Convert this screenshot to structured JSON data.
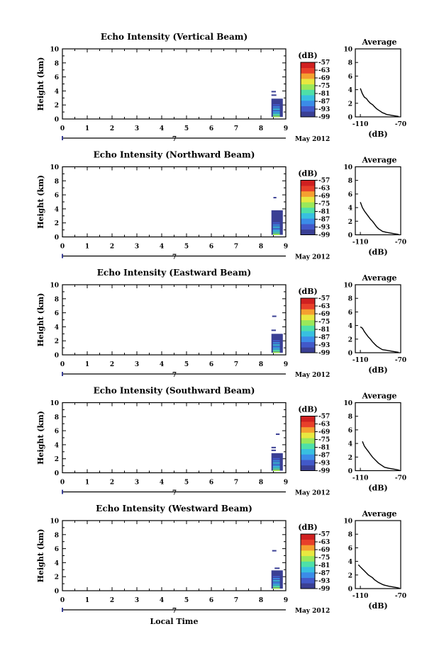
{
  "chart_data": [
    {
      "type": "heatmap",
      "title": "Echo Intensity (Vertical Beam)",
      "ylabel": "Height (km)",
      "xlim": [
        0,
        9
      ],
      "ylim": [
        0,
        10
      ],
      "xticks": [
        "0",
        "1",
        "2",
        "3",
        "4",
        "5",
        "6",
        "7",
        "8",
        "9"
      ],
      "yticks": [
        "0",
        "2",
        "4",
        "6",
        "8",
        "10"
      ],
      "date_label": "May 2012",
      "day_label": "7",
      "colorbar": {
        "label": "(dB)",
        "ticks": [
          "-57",
          "-63",
          "-69",
          "-75",
          "-81",
          "-87",
          "-93",
          "-99"
        ],
        "range": [
          -99,
          -57
        ]
      },
      "echo_block": {
        "x": [
          8.42,
          8.88
        ],
        "y": [
          0.3,
          2.9
        ],
        "dominant_db": -96
      },
      "echo_streaks": [
        {
          "x": [
            8.42,
            8.6
          ],
          "y": 3.9
        },
        {
          "x": [
            8.42,
            8.62
          ],
          "y": 3.4
        }
      ],
      "average_profile": {
        "title": "Average",
        "xlabel": "(dB)",
        "xlim": [
          -115,
          -70
        ],
        "ylim": [
          0,
          10
        ],
        "xticks": [
          "-110",
          "-70"
        ],
        "yticks": [
          "0",
          "2",
          "4",
          "6",
          "8",
          "10"
        ],
        "points": [
          [
            -110,
            4.2
          ],
          [
            -108,
            3.4
          ],
          [
            -106,
            2.9
          ],
          [
            -104,
            2.7
          ],
          [
            -102,
            2.3
          ],
          [
            -100,
            2.0
          ],
          [
            -98,
            1.8
          ],
          [
            -96,
            1.5
          ],
          [
            -94,
            1.2
          ],
          [
            -92,
            1.0
          ],
          [
            -90,
            0.8
          ],
          [
            -88,
            0.6
          ],
          [
            -86,
            0.5
          ],
          [
            -84,
            0.35
          ],
          [
            -80,
            0.25
          ],
          [
            -76,
            0.15
          ],
          [
            -72,
            0.05
          ]
        ]
      }
    },
    {
      "type": "heatmap",
      "title": "Echo Intensity (Northward Beam)",
      "ylabel": "Height (km)",
      "xlim": [
        0,
        9
      ],
      "ylim": [
        0,
        10
      ],
      "xticks": [
        "0",
        "1",
        "2",
        "3",
        "4",
        "5",
        "6",
        "7",
        "8",
        "9"
      ],
      "yticks": [
        "0",
        "2",
        "4",
        "6",
        "8",
        "10"
      ],
      "date_label": "May 2012",
      "day_label": "7",
      "colorbar": {
        "label": "(dB)",
        "ticks": [
          "-57",
          "-63",
          "-69",
          "-75",
          "-81",
          "-87",
          "-93",
          "-99"
        ],
        "range": [
          -99,
          -57
        ]
      },
      "echo_block": {
        "x": [
          8.42,
          8.88
        ],
        "y": [
          0.3,
          3.8
        ],
        "dominant_db": -96
      },
      "echo_streaks": [
        {
          "x": [
            8.5,
            8.62
          ],
          "y": 5.6
        }
      ],
      "average_profile": {
        "title": "Average",
        "xlabel": "(dB)",
        "xlim": [
          -115,
          -70
        ],
        "ylim": [
          0,
          10
        ],
        "xticks": [
          "-110",
          "-70"
        ],
        "yticks": [
          "0",
          "2",
          "4",
          "6",
          "8",
          "10"
        ],
        "points": [
          [
            -110,
            4.8
          ],
          [
            -108,
            4.0
          ],
          [
            -106,
            3.5
          ],
          [
            -104,
            3.1
          ],
          [
            -102,
            2.7
          ],
          [
            -100,
            2.3
          ],
          [
            -98,
            2.0
          ],
          [
            -96,
            1.6
          ],
          [
            -94,
            1.2
          ],
          [
            -92,
            0.9
          ],
          [
            -90,
            0.7
          ],
          [
            -88,
            0.5
          ],
          [
            -84,
            0.35
          ],
          [
            -80,
            0.25
          ],
          [
            -76,
            0.15
          ],
          [
            -72,
            0.05
          ]
        ]
      }
    },
    {
      "type": "heatmap",
      "title": "Echo Intensity (Eastward Beam)",
      "ylabel": "Height (km)",
      "xlim": [
        0,
        9
      ],
      "ylim": [
        0,
        10
      ],
      "xticks": [
        "0",
        "1",
        "2",
        "3",
        "4",
        "5",
        "6",
        "7",
        "8",
        "9"
      ],
      "yticks": [
        "0",
        "2",
        "4",
        "6",
        "8",
        "10"
      ],
      "date_label": "May 2012",
      "day_label": "7",
      "colorbar": {
        "label": "(dB)",
        "ticks": [
          "-57",
          "-63",
          "-69",
          "-75",
          "-81",
          "-87",
          "-93",
          "-99"
        ],
        "range": [
          -99,
          -57
        ]
      },
      "echo_block": {
        "x": [
          8.42,
          8.88
        ],
        "y": [
          0.3,
          3.0
        ],
        "dominant_db": -96
      },
      "echo_streaks": [
        {
          "x": [
            8.45,
            8.62
          ],
          "y": 5.5
        },
        {
          "x": [
            8.42,
            8.6
          ],
          "y": 3.5
        }
      ],
      "average_profile": {
        "title": "Average",
        "xlabel": "(dB)",
        "xlim": [
          -115,
          -70
        ],
        "ylim": [
          0,
          10
        ],
        "xticks": [
          "-110",
          "-70"
        ],
        "yticks": [
          "0",
          "2",
          "4",
          "6",
          "8",
          "10"
        ],
        "points": [
          [
            -110,
            3.8
          ],
          [
            -108,
            3.6
          ],
          [
            -106,
            3.1
          ],
          [
            -104,
            2.7
          ],
          [
            -102,
            2.3
          ],
          [
            -100,
            2.0
          ],
          [
            -98,
            1.6
          ],
          [
            -96,
            1.3
          ],
          [
            -94,
            1.0
          ],
          [
            -92,
            0.8
          ],
          [
            -90,
            0.6
          ],
          [
            -88,
            0.45
          ],
          [
            -84,
            0.35
          ],
          [
            -80,
            0.25
          ],
          [
            -76,
            0.15
          ],
          [
            -72,
            0.05
          ]
        ]
      }
    },
    {
      "type": "heatmap",
      "title": "Echo Intensity (Southward Beam)",
      "ylabel": "Height (km)",
      "xlim": [
        0,
        9
      ],
      "ylim": [
        0,
        10
      ],
      "xticks": [
        "0",
        "1",
        "2",
        "3",
        "4",
        "5",
        "6",
        "7",
        "8",
        "9"
      ],
      "yticks": [
        "0",
        "2",
        "4",
        "6",
        "8",
        "10"
      ],
      "date_label": "May 2012",
      "day_label": "7",
      "colorbar": {
        "label": "(dB)",
        "ticks": [
          "-57",
          "-63",
          "-69",
          "-75",
          "-81",
          "-87",
          "-93",
          "-99"
        ],
        "range": [
          -99,
          -57
        ]
      },
      "echo_block": {
        "x": [
          8.42,
          8.88
        ],
        "y": [
          0.3,
          2.8
        ],
        "dominant_db": -96
      },
      "echo_streaks": [
        {
          "x": [
            8.6,
            8.75
          ],
          "y": 5.5
        },
        {
          "x": [
            8.42,
            8.6
          ],
          "y": 3.6
        },
        {
          "x": [
            8.42,
            8.6
          ],
          "y": 3.2
        }
      ],
      "average_profile": {
        "title": "Average",
        "xlabel": "(dB)",
        "xlim": [
          -115,
          -70
        ],
        "ylim": [
          0,
          10
        ],
        "xticks": [
          "-110",
          "-70"
        ],
        "yticks": [
          "0",
          "2",
          "4",
          "6",
          "8",
          "10"
        ],
        "points": [
          [
            -108,
            4.3
          ],
          [
            -106,
            3.6
          ],
          [
            -104,
            3.2
          ],
          [
            -102,
            2.8
          ],
          [
            -100,
            2.4
          ],
          [
            -98,
            2.0
          ],
          [
            -96,
            1.7
          ],
          [
            -94,
            1.4
          ],
          [
            -92,
            1.1
          ],
          [
            -90,
            0.9
          ],
          [
            -88,
            0.7
          ],
          [
            -86,
            0.5
          ],
          [
            -82,
            0.35
          ],
          [
            -78,
            0.25
          ],
          [
            -74,
            0.15
          ],
          [
            -71,
            0.05
          ]
        ]
      }
    },
    {
      "type": "heatmap",
      "title": "Echo Intensity (Westward Beam)",
      "ylabel": "Height (km)",
      "xlim": [
        0,
        9
      ],
      "ylim": [
        0,
        10
      ],
      "xticks": [
        "0",
        "1",
        "2",
        "3",
        "4",
        "5",
        "6",
        "7",
        "8",
        "9"
      ],
      "yticks": [
        "0",
        "2",
        "4",
        "6",
        "8",
        "10"
      ],
      "date_label": "May 2012",
      "day_label": "7",
      "xlabel": "Local Time",
      "colorbar": {
        "label": "(dB)",
        "ticks": [
          "-57",
          "-63",
          "-69",
          "-75",
          "-81",
          "-87",
          "-93",
          "-99"
        ],
        "range": [
          -99,
          -57
        ]
      },
      "echo_block": {
        "x": [
          8.42,
          8.88
        ],
        "y": [
          0.3,
          2.9
        ],
        "dominant_db": -96
      },
      "echo_streaks": [
        {
          "x": [
            8.45,
            8.62
          ],
          "y": 5.7
        },
        {
          "x": [
            8.55,
            8.75
          ],
          "y": 3.2
        }
      ],
      "average_profile": {
        "title": "Average",
        "xlabel": "(dB)",
        "xlim": [
          -115,
          -70
        ],
        "ylim": [
          0,
          10
        ],
        "xticks": [
          "-110",
          "-70"
        ],
        "yticks": [
          "0",
          "2",
          "4",
          "6",
          "8",
          "10"
        ],
        "points": [
          [
            -112,
            3.5
          ],
          [
            -110,
            3.2
          ],
          [
            -108,
            2.9
          ],
          [
            -106,
            2.6
          ],
          [
            -104,
            2.3
          ],
          [
            -102,
            2.0
          ],
          [
            -100,
            1.8
          ],
          [
            -98,
            1.6
          ],
          [
            -96,
            1.3
          ],
          [
            -94,
            1.1
          ],
          [
            -92,
            0.9
          ],
          [
            -90,
            0.75
          ],
          [
            -88,
            0.6
          ],
          [
            -86,
            0.5
          ],
          [
            -82,
            0.35
          ],
          [
            -78,
            0.25
          ],
          [
            -74,
            0.15
          ],
          [
            -71,
            0.05
          ]
        ]
      }
    }
  ],
  "colors": {
    "echo_dominant": "#3a3f94",
    "colormap": [
      "#3a3f94",
      "#4259c9",
      "#3b8ce8",
      "#38c0e0",
      "#4ee0a8",
      "#9ae85a",
      "#e8e840",
      "#f5a030",
      "#e8402a",
      "#d02020"
    ]
  }
}
